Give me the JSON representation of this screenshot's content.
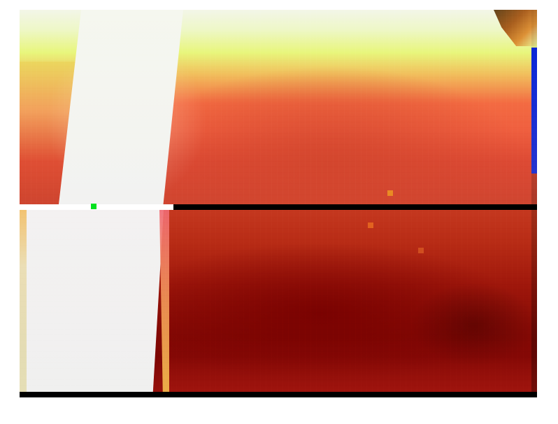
{
  "image": {
    "type": "cropped natural image",
    "dominant_colors": [
      "#f3f6e8",
      "#e8f67c",
      "#ef5f3f",
      "#880b05",
      "#000000"
    ],
    "accent_marker_color": "#00e11d"
  }
}
